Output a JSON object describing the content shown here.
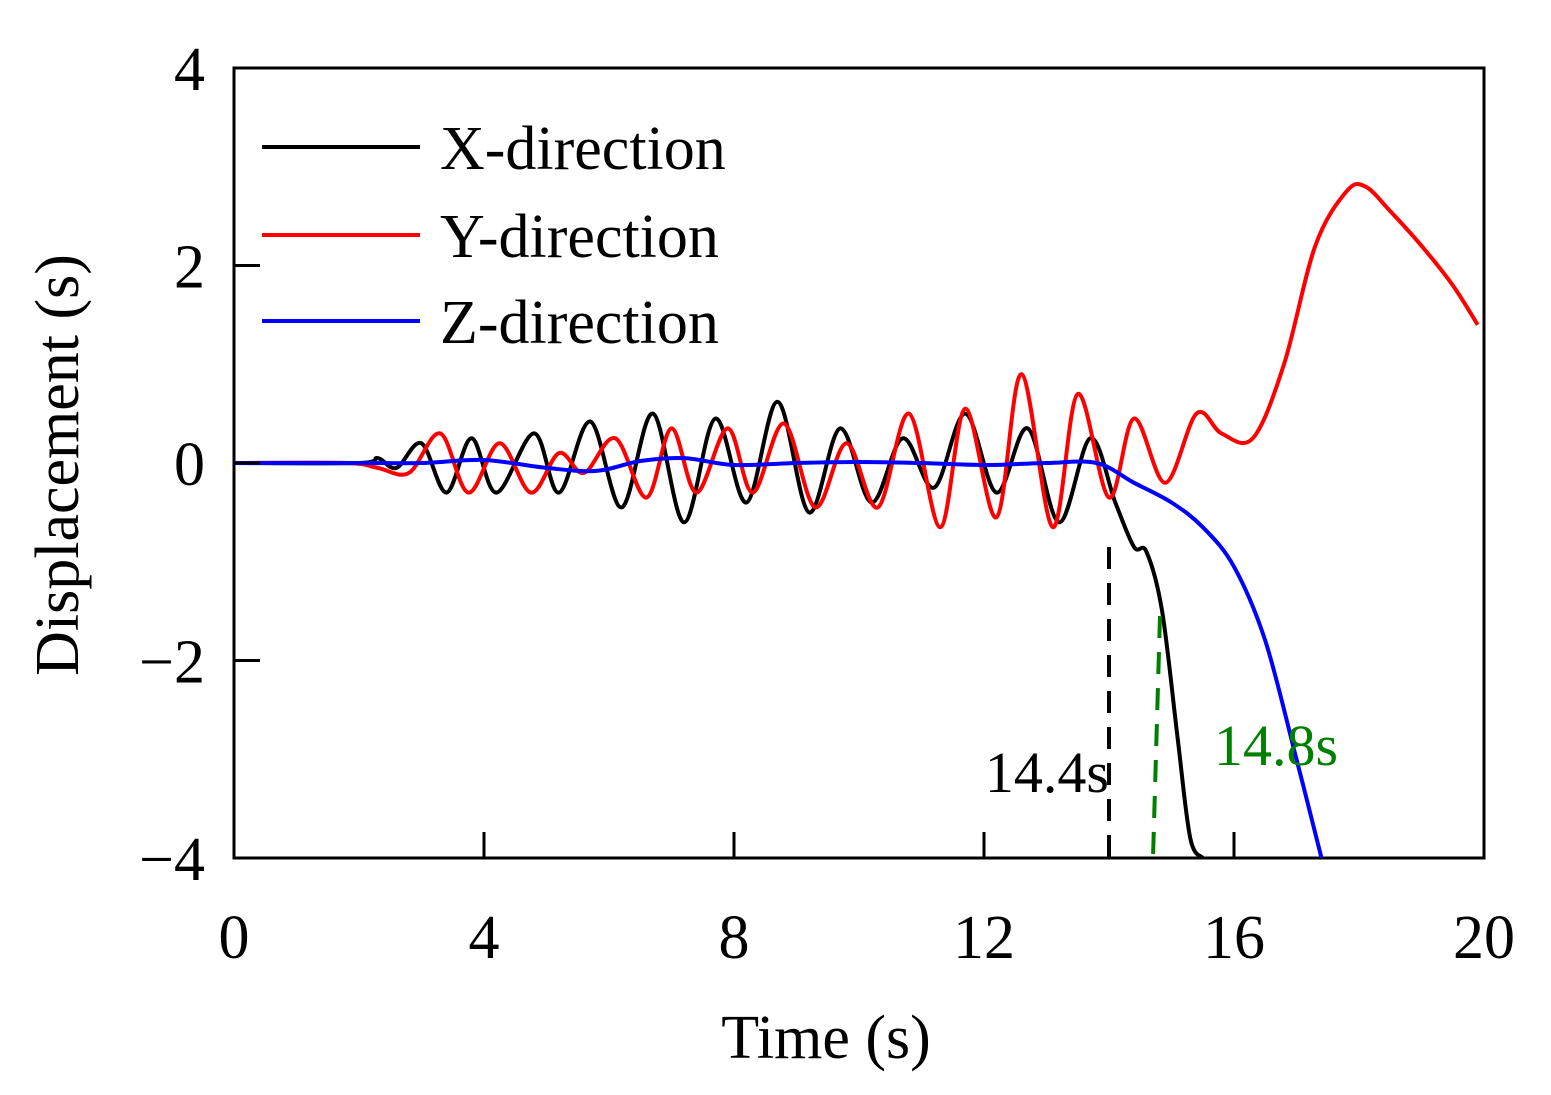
{
  "chart_data": {
    "type": "line",
    "title": "",
    "xlabel": "Time (s)",
    "ylabel": "Displacement (s)",
    "xlim": [
      0,
      20
    ],
    "ylim": [
      -4,
      4
    ],
    "xticks": [
      0,
      4,
      8,
      12,
      16,
      20
    ],
    "yticks": [
      -4,
      -2,
      0,
      2,
      4
    ],
    "xtick_labels": [
      "0",
      "4",
      "8",
      "12",
      "16",
      "20"
    ],
    "ytick_labels": [
      "−4",
      "−2",
      "0",
      "2",
      "4"
    ],
    "grid": false,
    "legend_position": "top-left",
    "series": [
      {
        "name": "X-direction",
        "color": "#000000",
        "x": [
          0,
          2,
          2.3,
          2.6,
          3.0,
          3.4,
          3.8,
          4.2,
          4.8,
          5.2,
          5.7,
          6.2,
          6.7,
          7.2,
          7.7,
          8.2,
          8.7,
          9.2,
          9.7,
          10.2,
          10.7,
          11.2,
          11.7,
          12.2,
          12.7,
          13.2,
          13.7,
          14.1,
          14.4,
          14.6,
          14.85,
          15.1,
          15.3,
          15.5
        ],
        "y": [
          0,
          0,
          0.05,
          -0.05,
          0.2,
          -0.3,
          0.25,
          -0.3,
          0.3,
          -0.3,
          0.42,
          -0.45,
          0.5,
          -0.6,
          0.45,
          -0.4,
          0.62,
          -0.5,
          0.35,
          -0.4,
          0.25,
          -0.25,
          0.5,
          -0.3,
          0.35,
          -0.6,
          0.25,
          -0.4,
          -0.85,
          -0.9,
          -1.5,
          -2.8,
          -3.8,
          -4.0
        ]
      },
      {
        "name": "Y-direction",
        "color": "#ff0000",
        "x": [
          0,
          1.8,
          2.3,
          2.8,
          3.3,
          3.75,
          4.25,
          4.75,
          5.2,
          5.6,
          6.1,
          6.6,
          7.0,
          7.4,
          7.9,
          8.3,
          8.8,
          9.3,
          9.8,
          10.3,
          10.8,
          11.3,
          11.7,
          12.2,
          12.6,
          13.1,
          13.5,
          14.0,
          14.4,
          14.9,
          15.4,
          15.8,
          16.3,
          16.8,
          17.3,
          17.8,
          18.1,
          18.5,
          19.0,
          19.5,
          19.9
        ],
        "y": [
          0,
          0,
          -0.05,
          -0.1,
          0.3,
          -0.3,
          0.2,
          -0.3,
          0.1,
          -0.1,
          0.25,
          -0.35,
          0.35,
          -0.3,
          0.35,
          -0.3,
          0.4,
          -0.45,
          0.2,
          -0.45,
          0.5,
          -0.65,
          0.55,
          -0.55,
          0.9,
          -0.65,
          0.7,
          -0.35,
          0.45,
          -0.2,
          0.5,
          0.3,
          0.25,
          1.0,
          2.2,
          2.75,
          2.8,
          2.55,
          2.2,
          1.8,
          1.4
        ]
      },
      {
        "name": "Z-direction",
        "color": "#0000ff",
        "x": [
          0,
          2.0,
          3.0,
          4.0,
          5.0,
          5.8,
          6.5,
          7.2,
          8.0,
          9.0,
          10.0,
          11.0,
          12.0,
          13.0,
          13.8,
          14.4,
          15.0,
          15.5,
          16.0,
          16.5,
          17.0,
          17.4
        ],
        "y": [
          0,
          0,
          0,
          0.03,
          -0.05,
          -0.08,
          0.02,
          0.05,
          -0.02,
          0.0,
          0.01,
          0.0,
          -0.02,
          0.0,
          0.0,
          -0.2,
          -0.4,
          -0.65,
          -1.05,
          -1.8,
          -3.0,
          -4.0
        ]
      }
    ],
    "annotations": [
      {
        "text": "14.4s",
        "x": 14.0,
        "color": "#000000",
        "line_style": "dashed"
      },
      {
        "text": "14.8s",
        "x": 14.8,
        "color": "#008000",
        "line_style": "dashed"
      }
    ]
  }
}
